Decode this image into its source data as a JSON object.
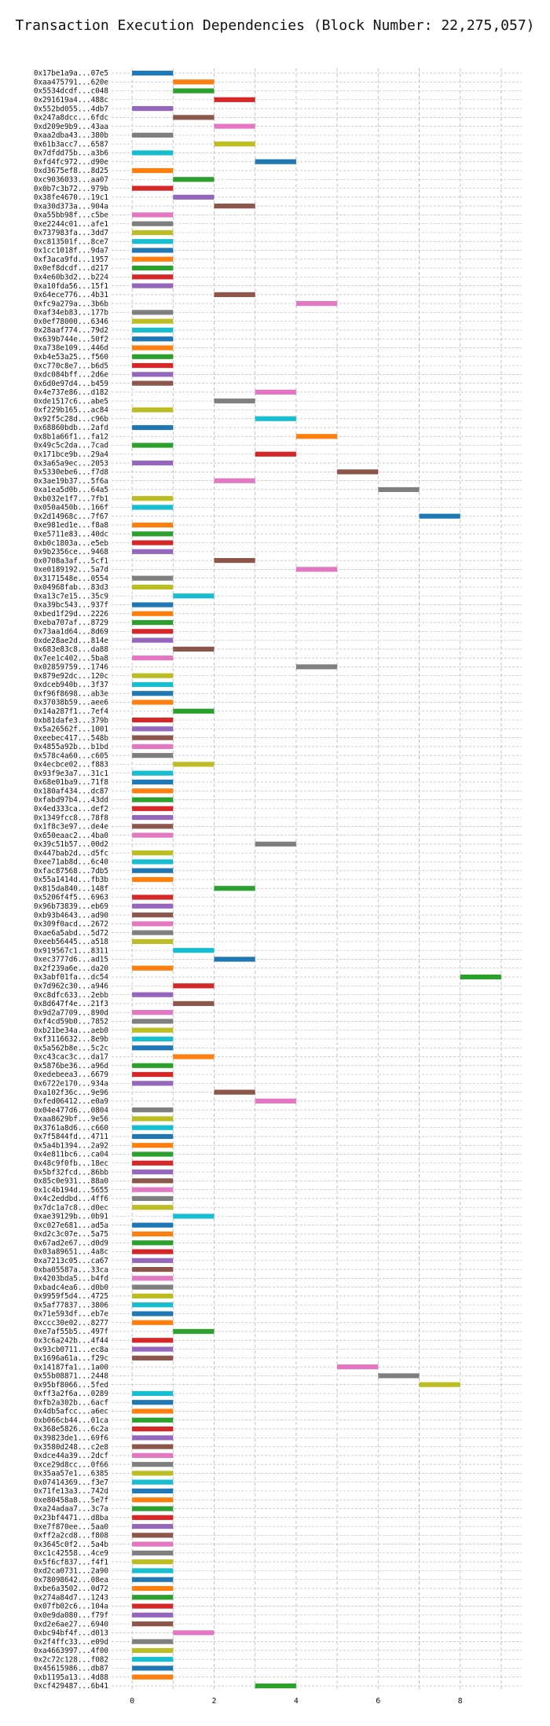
{
  "chart_data": {
    "type": "bar",
    "orientation": "horizontal",
    "title": "Transaction Execution Dependencies (Block Number: 22,275,057)",
    "xlabel": "",
    "ylabel": "",
    "xlim": [
      -0.5,
      9.5
    ],
    "xticks": [
      "0",
      "2",
      "4",
      "6",
      "8"
    ],
    "grid": true,
    "palette": [
      "#1f77b4",
      "#ff7f0e",
      "#2ca02c",
      "#d62728",
      "#9467bd",
      "#8c564b",
      "#e377c2",
      "#7f7f7f",
      "#bcbd22",
      "#17becf"
    ],
    "bars": [
      {
        "label": "0x17be1a9a...07e5",
        "start": 0,
        "end": 1
      },
      {
        "label": "0xaa475791...620e",
        "start": 1,
        "end": 2
      },
      {
        "label": "0x5534dcdf...c048",
        "start": 1,
        "end": 2
      },
      {
        "label": "0x291619a4...488c",
        "start": 2,
        "end": 3
      },
      {
        "label": "0x552bd055...4db7",
        "start": 0,
        "end": 1
      },
      {
        "label": "0x247a8dcc...6fdc",
        "start": 1,
        "end": 2
      },
      {
        "label": "0xd209e9b9...43aa",
        "start": 2,
        "end": 3
      },
      {
        "label": "0xaa2dba43...380b",
        "start": 0,
        "end": 1
      },
      {
        "label": "0x61b3acc7...6587",
        "start": 2,
        "end": 3
      },
      {
        "label": "0x7dfdd75b...a3b6",
        "start": 0,
        "end": 1
      },
      {
        "label": "0xfd4fc972...d90e",
        "start": 3,
        "end": 4
      },
      {
        "label": "0xd3675ef8...8d25",
        "start": 0,
        "end": 1
      },
      {
        "label": "0xc9036033...aa07",
        "start": 1,
        "end": 2
      },
      {
        "label": "0x0b7c3b72...979b",
        "start": 0,
        "end": 1
      },
      {
        "label": "0x38fe4670...19c1",
        "start": 1,
        "end": 2
      },
      {
        "label": "0xa30d373a...904a",
        "start": 2,
        "end": 3
      },
      {
        "label": "0xa55bb98f...c5be",
        "start": 0,
        "end": 1
      },
      {
        "label": "0xe2244c01...afe1",
        "start": 0,
        "end": 1
      },
      {
        "label": "0x737983fa...3dd7",
        "start": 0,
        "end": 1
      },
      {
        "label": "0xc813501f...8ce7",
        "start": 0,
        "end": 1
      },
      {
        "label": "0x1cc1018f...9da7",
        "start": 0,
        "end": 1
      },
      {
        "label": "0xf3aca9fd...1957",
        "start": 0,
        "end": 1
      },
      {
        "label": "0x0ef8dcdf...d217",
        "start": 0,
        "end": 1
      },
      {
        "label": "0x4e60b3d2...b224",
        "start": 0,
        "end": 1
      },
      {
        "label": "0xa10fda56...15f1",
        "start": 0,
        "end": 1
      },
      {
        "label": "0x64ece776...4b31",
        "start": 2,
        "end": 3
      },
      {
        "label": "0xfc9a279a...3b6b",
        "start": 4,
        "end": 5
      },
      {
        "label": "0xaf34eb83...177b",
        "start": 0,
        "end": 1
      },
      {
        "label": "0x0ef78000...6346",
        "start": 0,
        "end": 1
      },
      {
        "label": "0x28aaf774...79d2",
        "start": 0,
        "end": 1
      },
      {
        "label": "0x639b744e...50f2",
        "start": 0,
        "end": 1
      },
      {
        "label": "0xa738e109...446d",
        "start": 0,
        "end": 1
      },
      {
        "label": "0xb4e53a25...f560",
        "start": 0,
        "end": 1
      },
      {
        "label": "0xc770c8e7...b6d5",
        "start": 0,
        "end": 1
      },
      {
        "label": "0xdc084bff...2d6e",
        "start": 0,
        "end": 1
      },
      {
        "label": "0x6d0e97d4...b459",
        "start": 0,
        "end": 1
      },
      {
        "label": "0x4e737e86...d182",
        "start": 3,
        "end": 4
      },
      {
        "label": "0xde1517c6...abe5",
        "start": 2,
        "end": 3
      },
      {
        "label": "0xf229b165...ac84",
        "start": 0,
        "end": 1
      },
      {
        "label": "0x92f5c28d...c96b",
        "start": 3,
        "end": 4
      },
      {
        "label": "0x68860bdb...2afd",
        "start": 0,
        "end": 1
      },
      {
        "label": "0x8b1a66f1...fa12",
        "start": 4,
        "end": 5
      },
      {
        "label": "0x49c5c2da...7cad",
        "start": 0,
        "end": 1
      },
      {
        "label": "0x171bce9b...29a4",
        "start": 3,
        "end": 4
      },
      {
        "label": "0x3a65a9ec...2053",
        "start": 0,
        "end": 1
      },
      {
        "label": "0x5330ebe6...f7d8",
        "start": 5,
        "end": 6
      },
      {
        "label": "0x3ae19b37...5f6a",
        "start": 2,
        "end": 3
      },
      {
        "label": "0xa1ea5d0b...64a5",
        "start": 6,
        "end": 7
      },
      {
        "label": "0xb032e1f7...7fb1",
        "start": 0,
        "end": 1
      },
      {
        "label": "0x050a450b...166f",
        "start": 0,
        "end": 1
      },
      {
        "label": "0x2d14968c...7f67",
        "start": 7,
        "end": 8
      },
      {
        "label": "0xe981ed1e...f8a8",
        "start": 0,
        "end": 1
      },
      {
        "label": "0xe5711e83...40dc",
        "start": 0,
        "end": 1
      },
      {
        "label": "0xb0c1803a...e5eb",
        "start": 0,
        "end": 1
      },
      {
        "label": "0x9b2356ce...9468",
        "start": 0,
        "end": 1
      },
      {
        "label": "0x0708a3af...5cf1",
        "start": 2,
        "end": 3
      },
      {
        "label": "0xe0189192...5a7d",
        "start": 4,
        "end": 5
      },
      {
        "label": "0x3171548e...0554",
        "start": 0,
        "end": 1
      },
      {
        "label": "0x04968fab...83d3",
        "start": 0,
        "end": 1
      },
      {
        "label": "0xa13c7e15...35c9",
        "start": 1,
        "end": 2
      },
      {
        "label": "0xa39bc543...937f",
        "start": 0,
        "end": 1
      },
      {
        "label": "0xbed1f29d...2226",
        "start": 0,
        "end": 1
      },
      {
        "label": "0xeba707af...8729",
        "start": 0,
        "end": 1
      },
      {
        "label": "0x73aa1d64...8d69",
        "start": 0,
        "end": 1
      },
      {
        "label": "0xde28ae2d...814e",
        "start": 0,
        "end": 1
      },
      {
        "label": "0x683e83c8...da88",
        "start": 1,
        "end": 2
      },
      {
        "label": "0x7ee1c402...5ba8",
        "start": 0,
        "end": 1
      },
      {
        "label": "0x02859759...1746",
        "start": 4,
        "end": 5
      },
      {
        "label": "0x879e92dc...120c",
        "start": 0,
        "end": 1
      },
      {
        "label": "0xdceb940b...3f37",
        "start": 0,
        "end": 1
      },
      {
        "label": "0xf96f8698...ab3e",
        "start": 0,
        "end": 1
      },
      {
        "label": "0x37038b59...aee6",
        "start": 0,
        "end": 1
      },
      {
        "label": "0x14a287f1...7ef4",
        "start": 1,
        "end": 2
      },
      {
        "label": "0xb81dafe3...379b",
        "start": 0,
        "end": 1
      },
      {
        "label": "0x5a26562f...1001",
        "start": 0,
        "end": 1
      },
      {
        "label": "0xeebec417...548b",
        "start": 0,
        "end": 1
      },
      {
        "label": "0x4855a92b...b1bd",
        "start": 0,
        "end": 1
      },
      {
        "label": "0x578c4a60...c605",
        "start": 0,
        "end": 1
      },
      {
        "label": "0x4ecbce02...f883",
        "start": 1,
        "end": 2
      },
      {
        "label": "0x93f9e3a7...31c1",
        "start": 0,
        "end": 1
      },
      {
        "label": "0x68e01ba9...71f8",
        "start": 0,
        "end": 1
      },
      {
        "label": "0x180af434...dc87",
        "start": 0,
        "end": 1
      },
      {
        "label": "0xfabd97b4...43dd",
        "start": 0,
        "end": 1
      },
      {
        "label": "0x4ed333ca...def2",
        "start": 0,
        "end": 1
      },
      {
        "label": "0x1349fcc8...78f8",
        "start": 0,
        "end": 1
      },
      {
        "label": "0x1f8c3e97...de4e",
        "start": 0,
        "end": 1
      },
      {
        "label": "0x650eaac2...4ba0",
        "start": 0,
        "end": 1
      },
      {
        "label": "0x39c51b57...00d2",
        "start": 3,
        "end": 4
      },
      {
        "label": "0x447bab2d...d5fc",
        "start": 0,
        "end": 1
      },
      {
        "label": "0xee71ab8d...6c40",
        "start": 0,
        "end": 1
      },
      {
        "label": "0xfac87568...7db5",
        "start": 0,
        "end": 1
      },
      {
        "label": "0x55a1414d...fb3b",
        "start": 0,
        "end": 1
      },
      {
        "label": "0x815da840...148f",
        "start": 2,
        "end": 3
      },
      {
        "label": "0x5206f4f5...6963",
        "start": 0,
        "end": 1
      },
      {
        "label": "0x96b73839...eb69",
        "start": 0,
        "end": 1
      },
      {
        "label": "0xb93b4643...ad90",
        "start": 0,
        "end": 1
      },
      {
        "label": "0x309f0acd...2672",
        "start": 0,
        "end": 1
      },
      {
        "label": "0xae6a5abd...5d72",
        "start": 0,
        "end": 1
      },
      {
        "label": "0xeeb56445...a518",
        "start": 0,
        "end": 1
      },
      {
        "label": "0x919567c1...8311",
        "start": 1,
        "end": 2
      },
      {
        "label": "0xec3777d6...ad15",
        "start": 2,
        "end": 3
      },
      {
        "label": "0x2f239a6e...da20",
        "start": 0,
        "end": 1
      },
      {
        "label": "0x3abf01fa...dc54",
        "start": 8,
        "end": 9
      },
      {
        "label": "0x7d962c30...a946",
        "start": 1,
        "end": 2
      },
      {
        "label": "0xc8dfc633...2ebb",
        "start": 0,
        "end": 1
      },
      {
        "label": "0x8d647f4e...21f3",
        "start": 1,
        "end": 2
      },
      {
        "label": "0x9d2a7709...890d",
        "start": 0,
        "end": 1
      },
      {
        "label": "0xf4cd59b0...7852",
        "start": 0,
        "end": 1
      },
      {
        "label": "0xb21be34a...aeb0",
        "start": 0,
        "end": 1
      },
      {
        "label": "0xf3116632...8e9b",
        "start": 0,
        "end": 1
      },
      {
        "label": "0x5a562b8e...5c2c",
        "start": 0,
        "end": 1
      },
      {
        "label": "0xc43cac3c...da17",
        "start": 1,
        "end": 2
      },
      {
        "label": "0x5876be36...a96d",
        "start": 0,
        "end": 1
      },
      {
        "label": "0xedebeea3...6679",
        "start": 0,
        "end": 1
      },
      {
        "label": "0x6722e170...934a",
        "start": 0,
        "end": 1
      },
      {
        "label": "0xa102f36c...9e96",
        "start": 2,
        "end": 3
      },
      {
        "label": "0xfed06412...e0a9",
        "start": 3,
        "end": 4
      },
      {
        "label": "0x04e477d6...0804",
        "start": 0,
        "end": 1
      },
      {
        "label": "0xaa8629bf...9e56",
        "start": 0,
        "end": 1
      },
      {
        "label": "0x3761a8d6...c660",
        "start": 0,
        "end": 1
      },
      {
        "label": "0x7f5844fd...4711",
        "start": 0,
        "end": 1
      },
      {
        "label": "0x5a4b1394...2a92",
        "start": 0,
        "end": 1
      },
      {
        "label": "0x4e811bc6...ca04",
        "start": 0,
        "end": 1
      },
      {
        "label": "0x48c9f0fb...18ec",
        "start": 0,
        "end": 1
      },
      {
        "label": "0x5bf32fcd...86bb",
        "start": 0,
        "end": 1
      },
      {
        "label": "0x85c0e931...88a0",
        "start": 0,
        "end": 1
      },
      {
        "label": "0x1c4b194d...5655",
        "start": 0,
        "end": 1
      },
      {
        "label": "0x4c2eddbd...4ff6",
        "start": 0,
        "end": 1
      },
      {
        "label": "0x7dc1a7c8...d0ec",
        "start": 0,
        "end": 1
      },
      {
        "label": "0xae39129b...0b91",
        "start": 1,
        "end": 2
      },
      {
        "label": "0xc027e681...ad5a",
        "start": 0,
        "end": 1
      },
      {
        "label": "0xd2c3c07e...5a75",
        "start": 0,
        "end": 1
      },
      {
        "label": "0x67ad2e67...d0d9",
        "start": 0,
        "end": 1
      },
      {
        "label": "0x03a89651...4a8c",
        "start": 0,
        "end": 1
      },
      {
        "label": "0xa7213c05...ca67",
        "start": 0,
        "end": 1
      },
      {
        "label": "0xba05587a...33ca",
        "start": 0,
        "end": 1
      },
      {
        "label": "0x4203bda5...b4fd",
        "start": 0,
        "end": 1
      },
      {
        "label": "0xbadc4ea6...d0b0",
        "start": 0,
        "end": 1
      },
      {
        "label": "0x9959f5d4...4725",
        "start": 0,
        "end": 1
      },
      {
        "label": "0x5af77837...3806",
        "start": 0,
        "end": 1
      },
      {
        "label": "0x71e593df...eb7e",
        "start": 0,
        "end": 1
      },
      {
        "label": "0xccc30e02...8277",
        "start": 0,
        "end": 1
      },
      {
        "label": "0xe7af55b5...497f",
        "start": 1,
        "end": 2
      },
      {
        "label": "0x3c6a242b...4f44",
        "start": 0,
        "end": 1
      },
      {
        "label": "0x93cb0711...ec8a",
        "start": 0,
        "end": 1
      },
      {
        "label": "0x1696a61a...f29c",
        "start": 0,
        "end": 1
      },
      {
        "label": "0x14187fa1...1a00",
        "start": 5,
        "end": 6
      },
      {
        "label": "0x55b08871...2448",
        "start": 6,
        "end": 7
      },
      {
        "label": "0x95bf8066...5fed",
        "start": 7,
        "end": 8
      },
      {
        "label": "0xff3a2f6a...0289",
        "start": 0,
        "end": 1
      },
      {
        "label": "0xfb2a302b...6acf",
        "start": 0,
        "end": 1
      },
      {
        "label": "0x4db5afcc...a6ec",
        "start": 0,
        "end": 1
      },
      {
        "label": "0xb066cb44...01ca",
        "start": 0,
        "end": 1
      },
      {
        "label": "0x368e5826...6c2a",
        "start": 0,
        "end": 1
      },
      {
        "label": "0x39823de1...69f6",
        "start": 0,
        "end": 1
      },
      {
        "label": "0x3580d248...c2e8",
        "start": 0,
        "end": 1
      },
      {
        "label": "0xdce44a39...2dcf",
        "start": 0,
        "end": 1
      },
      {
        "label": "0xce29d8cc...0f66",
        "start": 0,
        "end": 1
      },
      {
        "label": "0x35aa57e1...6385",
        "start": 0,
        "end": 1
      },
      {
        "label": "0x07414369...f3e7",
        "start": 0,
        "end": 1
      },
      {
        "label": "0x71fe13a3...742d",
        "start": 0,
        "end": 1
      },
      {
        "label": "0xe80458a8...5e7f",
        "start": 0,
        "end": 1
      },
      {
        "label": "0xa24adaa7...3c7a",
        "start": 0,
        "end": 1
      },
      {
        "label": "0x23bf4471...d8ba",
        "start": 0,
        "end": 1
      },
      {
        "label": "0xe7f870ee...5aa0",
        "start": 0,
        "end": 1
      },
      {
        "label": "0xff2a2cd8...f808",
        "start": 0,
        "end": 1
      },
      {
        "label": "0x3645c0f2...5a4b",
        "start": 0,
        "end": 1
      },
      {
        "label": "0xc1c42558...4ce9",
        "start": 0,
        "end": 1
      },
      {
        "label": "0x5f6cf837...f4f1",
        "start": 0,
        "end": 1
      },
      {
        "label": "0xd2ca0731...2a90",
        "start": 0,
        "end": 1
      },
      {
        "label": "0x78098642...08ea",
        "start": 0,
        "end": 1
      },
      {
        "label": "0xbe6a3502...0d72",
        "start": 0,
        "end": 1
      },
      {
        "label": "0x274a84d7...1243",
        "start": 0,
        "end": 1
      },
      {
        "label": "0x07fb02c6...104a",
        "start": 0,
        "end": 1
      },
      {
        "label": "0x0e9da080...f79f",
        "start": 0,
        "end": 1
      },
      {
        "label": "0xd2e6ae27...6940",
        "start": 0,
        "end": 1
      },
      {
        "label": "0xbc94bf4f...d013",
        "start": 1,
        "end": 2
      },
      {
        "label": "0x2f4ffc33...e09d",
        "start": 0,
        "end": 1
      },
      {
        "label": "0xa4663997...4f00",
        "start": 0,
        "end": 1
      },
      {
        "label": "0x2c72c128...f082",
        "start": 0,
        "end": 1
      },
      {
        "label": "0x45615986...db87",
        "start": 0,
        "end": 1
      },
      {
        "label": "0xb1195a13...4d88",
        "start": 0,
        "end": 1
      },
      {
        "label": "0xcf429487...6b41",
        "start": 3,
        "end": 4
      }
    ]
  }
}
